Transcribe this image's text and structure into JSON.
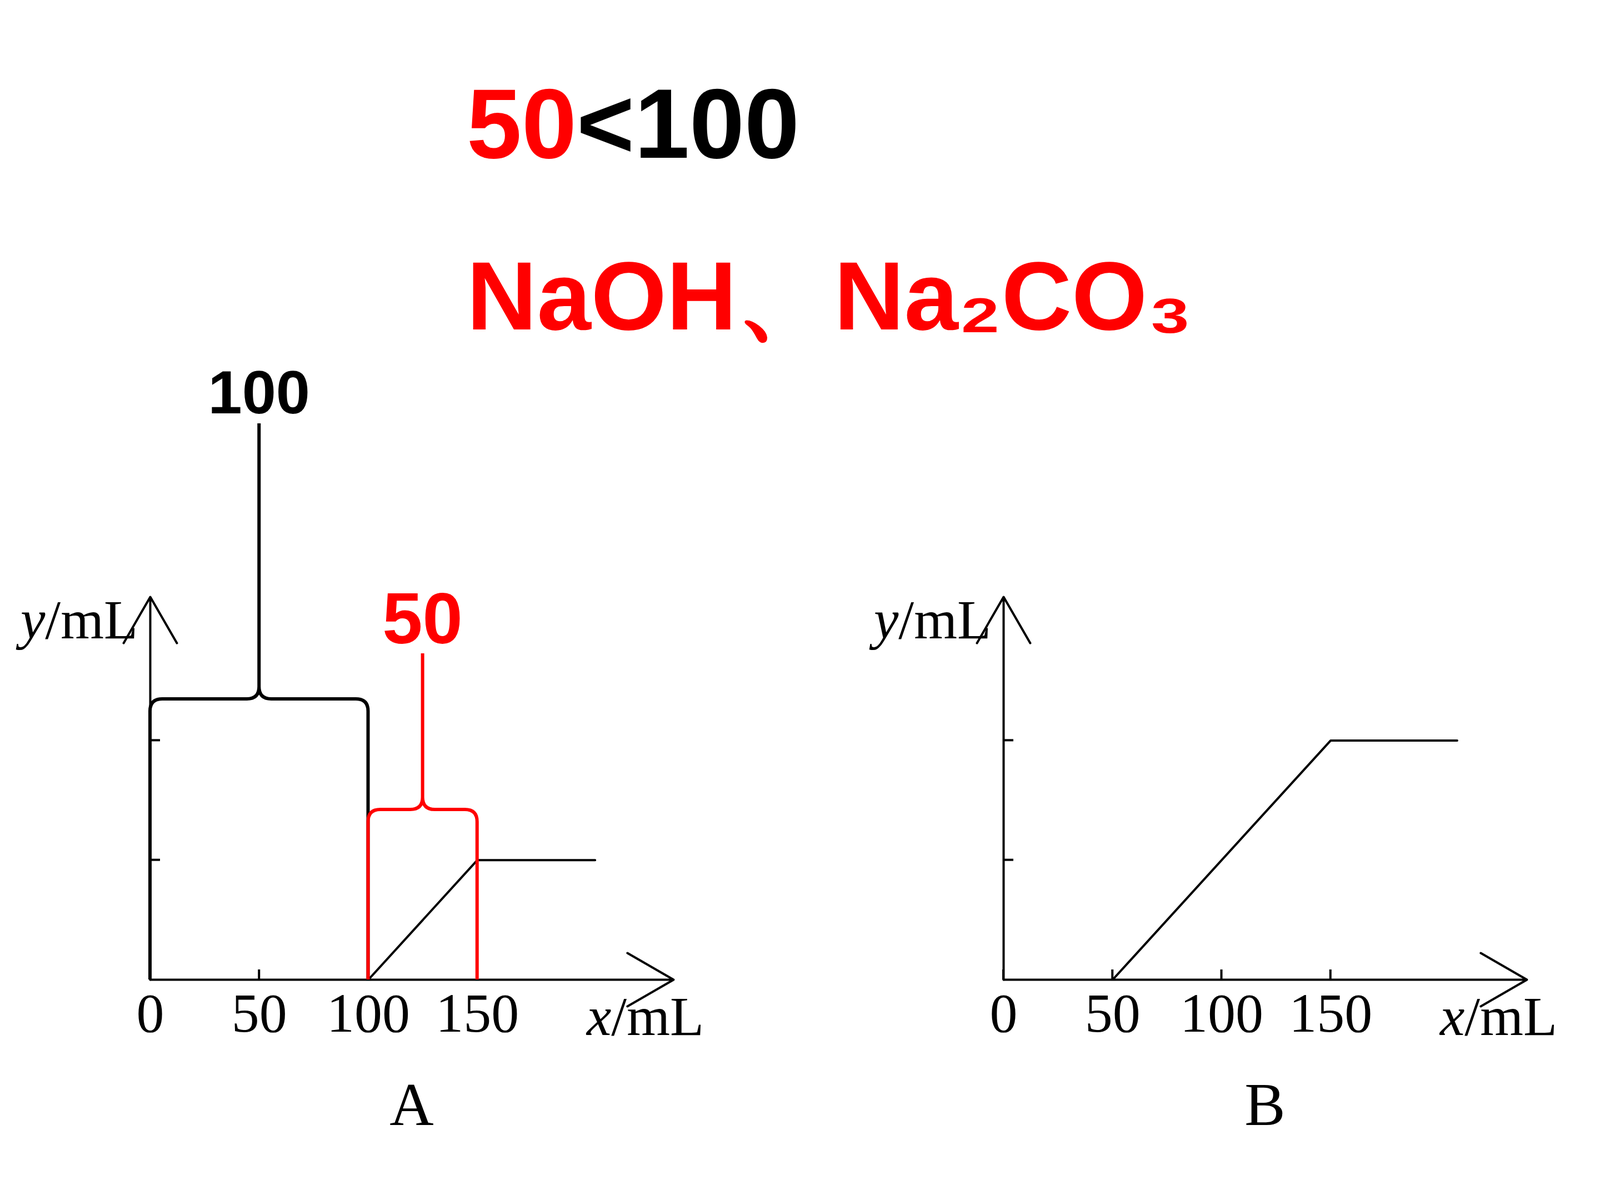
{
  "header": {
    "parts": [
      {
        "text": "50",
        "color": "#ff0000"
      },
      {
        "text": "<100",
        "color": "#000000"
      }
    ]
  },
  "subheader": {
    "text": "NaOH、Na₂CO₃",
    "color": "#ff0000"
  },
  "chart_data": [
    {
      "type": "line",
      "title": "A",
      "x_label": "x/mL",
      "y_label": "y/mL",
      "x": [
        100,
        150,
        204
      ],
      "values": [
        0,
        1,
        1
      ],
      "color": "#000000",
      "xlim": [
        0,
        240
      ],
      "xticks": [
        0,
        50,
        100,
        150
      ],
      "ylim": [
        0,
        3.2
      ],
      "yticks": [
        1,
        2
      ],
      "tick_labels": "x",
      "grid": false,
      "braces": [
        {
          "from": 0,
          "to": 100,
          "label": "100",
          "color": "#000000"
        },
        {
          "from": 100,
          "to": 150,
          "label": "50",
          "color": "#ff0000"
        }
      ]
    },
    {
      "type": "line",
      "title": "B",
      "x_label": "x/mL",
      "y_label": "y/mL",
      "x": [
        50,
        150,
        208
      ],
      "values": [
        0,
        2,
        2
      ],
      "color": "#000000",
      "xlim": [
        0,
        240
      ],
      "xticks": [
        0,
        50,
        100,
        150
      ],
      "ylim": [
        0,
        3.2
      ],
      "yticks": [
        1,
        2
      ],
      "tick_labels": "x",
      "grid": false,
      "braces": []
    }
  ]
}
